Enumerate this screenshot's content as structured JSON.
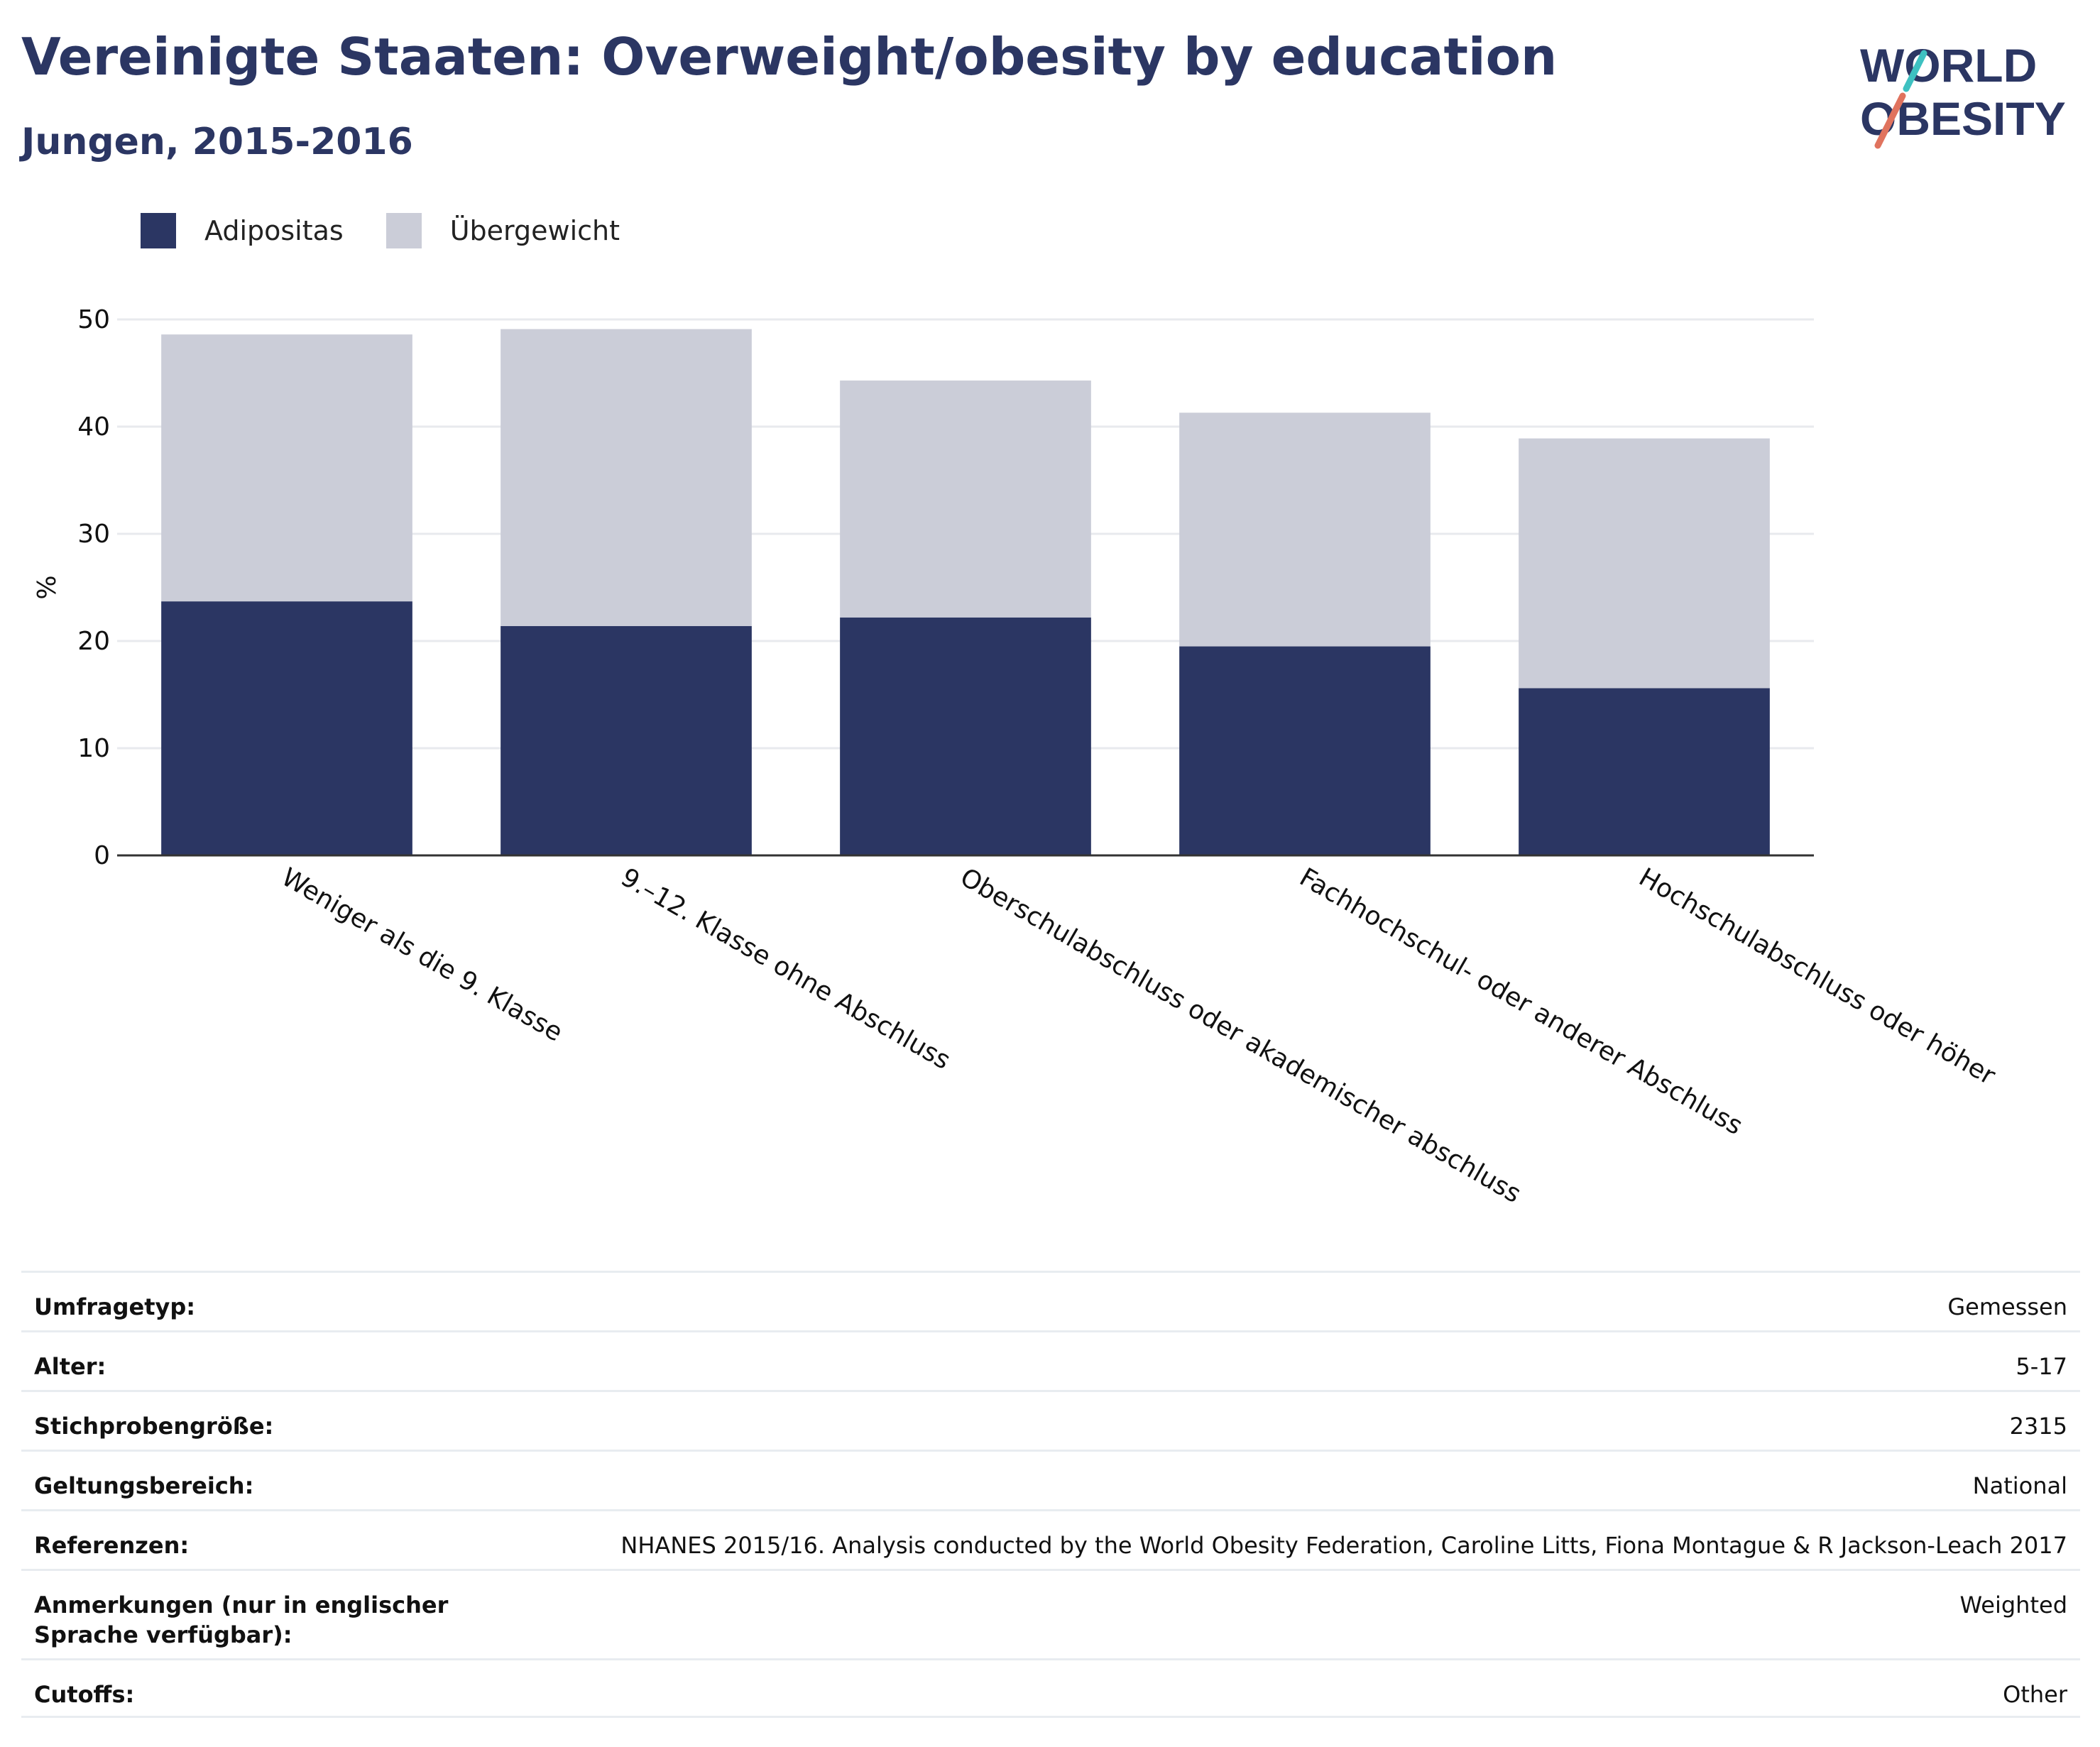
{
  "header": {
    "title": "Vereinigte Staaten: Overweight/obesity by education",
    "subtitle": "Jungen, 2015-2016"
  },
  "logo": {
    "line1": "WORLD",
    "line2": "OBESITY",
    "accent_colors": [
      "#e0735e",
      "#3ec1c1"
    ]
  },
  "colors": {
    "obesity": "#2b3663",
    "overweight": "#cbcdd8",
    "grid": "#e8eaee",
    "axis": "#333333"
  },
  "legend": [
    {
      "label": "Adipositas",
      "color": "#2b3663"
    },
    {
      "label": "Übergewicht",
      "color": "#cbcdd8"
    }
  ],
  "chart_data": {
    "type": "bar",
    "stacked": true,
    "ylabel": "%",
    "ylim": [
      0,
      50
    ],
    "yticks": [
      0,
      10,
      20,
      30,
      40,
      50
    ],
    "grid": true,
    "legend_position": "top-left",
    "categories": [
      "Weniger als die 9. Klasse",
      "9.–12. Klasse ohne Abschluss",
      "Oberschulabschluss oder akademischer abschluss",
      "Fachhochschul- oder anderer Abschluss",
      "Hochschulabschluss oder höher"
    ],
    "series": [
      {
        "name": "Adipositas",
        "values": [
          23.7,
          21.4,
          22.2,
          19.5,
          15.6
        ]
      },
      {
        "name": "Übergewicht",
        "values": [
          24.9,
          27.7,
          22.1,
          21.8,
          23.3
        ]
      }
    ],
    "totals": [
      48.6,
      49.1,
      44.3,
      41.3,
      38.9
    ]
  },
  "meta": [
    {
      "label": "Umfragetyp:",
      "value": "Gemessen"
    },
    {
      "label": "Alter:",
      "value": "5-17"
    },
    {
      "label": "Stichprobengröße:",
      "value": "2315"
    },
    {
      "label": "Geltungsbereich:",
      "value": "National"
    },
    {
      "label": "Referenzen:",
      "value": "NHANES 2015/16. Analysis conducted by the World Obesity Federation, Caroline Litts, Fiona Montague & R Jackson-Leach 2017"
    },
    {
      "label": "Anmerkungen (nur in englischer Sprache verfügbar):",
      "value": "Weighted"
    },
    {
      "label": "Cutoffs:",
      "value": "Other"
    }
  ]
}
